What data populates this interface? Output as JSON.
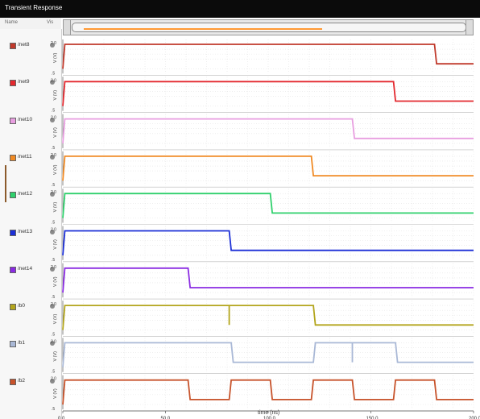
{
  "window": {
    "title": "Transient Response"
  },
  "panel": {
    "header": {
      "name": "Name",
      "vis": "Vis"
    },
    "signals": [
      {
        "name": "/net8",
        "color": "#c0392b"
      },
      {
        "name": "/net9",
        "color": "#e3282e"
      },
      {
        "name": "/net10",
        "color": "#e89ee0"
      },
      {
        "name": "/net11",
        "color": "#f08a24"
      },
      {
        "name": "/net12",
        "color": "#2fd06c"
      },
      {
        "name": "/net13",
        "color": "#1b2fd6"
      },
      {
        "name": "/net14",
        "color": "#8a2be2"
      },
      {
        "name": "/b0",
        "color": "#b3a51c"
      },
      {
        "name": "/b1",
        "color": "#a9b8d6"
      },
      {
        "name": "/b2",
        "color": "#c7522a"
      }
    ]
  },
  "chart_data": {
    "type": "line",
    "xlabel": "time (ns)",
    "ylabel": "V (V)",
    "xlim": [
      0,
      200
    ],
    "ylim": [
      -0.5,
      2.0
    ],
    "x_tick_labels": [
      "0.0",
      "50.0",
      "100.0",
      "150.0",
      "200.0"
    ],
    "y_tick_labels": [
      "2.0",
      ".5"
    ],
    "grid": true,
    "series": [
      {
        "name": "/net8",
        "color": "#c0392b",
        "points": [
          [
            0,
            -0.5
          ],
          [
            1,
            2.0
          ],
          [
            181,
            2.0
          ],
          [
            182,
            0.0
          ],
          [
            200,
            0.0
          ]
        ]
      },
      {
        "name": "/net9",
        "color": "#e3282e",
        "points": [
          [
            0,
            -0.5
          ],
          [
            1,
            2.0
          ],
          [
            161,
            2.0
          ],
          [
            162,
            0.0
          ],
          [
            200,
            0.0
          ]
        ]
      },
      {
        "name": "/net10",
        "color": "#e89ee0",
        "points": [
          [
            0,
            -0.5
          ],
          [
            1,
            2.0
          ],
          [
            141,
            2.0
          ],
          [
            142,
            0.0
          ],
          [
            200,
            0.0
          ]
        ]
      },
      {
        "name": "/net11",
        "color": "#f08a24",
        "points": [
          [
            0,
            -0.5
          ],
          [
            1,
            2.0
          ],
          [
            121,
            2.0
          ],
          [
            122,
            0.0
          ],
          [
            200,
            0.0
          ]
        ]
      },
      {
        "name": "/net12",
        "color": "#2fd06c",
        "points": [
          [
            0,
            -0.5
          ],
          [
            1,
            2.0
          ],
          [
            101,
            2.0
          ],
          [
            102,
            0.0
          ],
          [
            200,
            0.0
          ]
        ]
      },
      {
        "name": "/net13",
        "color": "#1b2fd6",
        "points": [
          [
            0,
            -0.5
          ],
          [
            1,
            2.0
          ],
          [
            81,
            2.0
          ],
          [
            82,
            0.0
          ],
          [
            200,
            0.0
          ]
        ]
      },
      {
        "name": "/net14",
        "color": "#8a2be2",
        "points": [
          [
            0,
            -0.5
          ],
          [
            1,
            2.0
          ],
          [
            61,
            2.0
          ],
          [
            62,
            0.0
          ],
          [
            200,
            0.0
          ]
        ]
      },
      {
        "name": "/b0",
        "color": "#b3a51c",
        "points": [
          [
            0,
            -0.5
          ],
          [
            1,
            2.0
          ],
          [
            81,
            2.0
          ],
          [
            81,
            0.0
          ],
          [
            81,
            2.0
          ],
          [
            122,
            2.0
          ],
          [
            123,
            0.0
          ],
          [
            200,
            0.0
          ]
        ]
      },
      {
        "name": "/b1",
        "color": "#a9b8d6",
        "points": [
          [
            0,
            -0.5
          ],
          [
            1,
            2.0
          ],
          [
            82,
            2.0
          ],
          [
            83,
            0.0
          ],
          [
            122,
            0.0
          ],
          [
            123,
            2.0
          ],
          [
            141,
            2.0
          ],
          [
            141,
            0.0
          ],
          [
            141,
            2.0
          ],
          [
            162,
            2.0
          ],
          [
            163,
            0.0
          ],
          [
            200,
            0.0
          ]
        ]
      },
      {
        "name": "/b2",
        "color": "#c7522a",
        "points": [
          [
            0,
            -0.5
          ],
          [
            1,
            2.0
          ],
          [
            61,
            2.0
          ],
          [
            62,
            0.0
          ],
          [
            81,
            0.0
          ],
          [
            82,
            2.0
          ],
          [
            101,
            2.0
          ],
          [
            102,
            0.0
          ],
          [
            121,
            0.0
          ],
          [
            122,
            2.0
          ],
          [
            141,
            2.0
          ],
          [
            142,
            0.0
          ],
          [
            161,
            0.0
          ],
          [
            162,
            2.0
          ],
          [
            181,
            2.0
          ],
          [
            182,
            0.0
          ],
          [
            200,
            0.0
          ]
        ]
      }
    ]
  }
}
